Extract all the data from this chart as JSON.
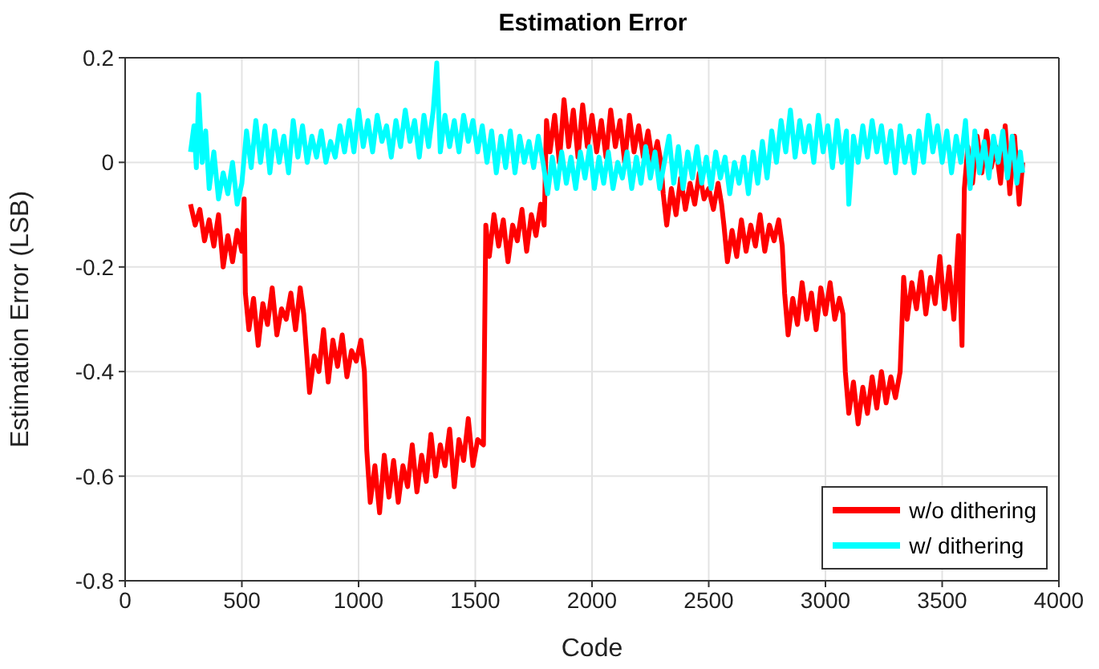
{
  "chart_data": {
    "type": "line",
    "title": "Estimation Error",
    "xlabel": "Code",
    "ylabel": "Estimation Error (LSB)",
    "xlim": [
      0,
      4000
    ],
    "xticks": [
      0,
      500,
      1000,
      1500,
      2000,
      2500,
      3000,
      3500,
      4000
    ],
    "ylim": [
      -0.8,
      0.2
    ],
    "yticks": [
      -0.8,
      -0.6,
      -0.4,
      -0.2,
      0,
      0.2
    ],
    "grid": true,
    "legend": "bottom right",
    "marker": "none",
    "line_style": "solid",
    "series": [
      {
        "name": "w/o dithering",
        "color": "#ff0000",
        "x": [
          280,
          300,
          320,
          340,
          360,
          380,
          400,
          420,
          440,
          460,
          480,
          500,
          510,
          515,
          530,
          550,
          570,
          590,
          610,
          630,
          650,
          670,
          690,
          710,
          730,
          750,
          765,
          775,
          790,
          810,
          830,
          850,
          870,
          890,
          910,
          930,
          950,
          970,
          990,
          1010,
          1025,
          1035,
          1050,
          1070,
          1090,
          1110,
          1130,
          1150,
          1170,
          1190,
          1210,
          1230,
          1250,
          1270,
          1290,
          1310,
          1330,
          1350,
          1370,
          1390,
          1410,
          1430,
          1450,
          1470,
          1490,
          1510,
          1535,
          1545,
          1560,
          1580,
          1600,
          1620,
          1640,
          1660,
          1680,
          1700,
          1720,
          1740,
          1760,
          1780,
          1795,
          1805,
          1820,
          1840,
          1860,
          1880,
          1900,
          1920,
          1940,
          1960,
          1980,
          2000,
          2020,
          2040,
          2060,
          2080,
          2100,
          2120,
          2140,
          2160,
          2180,
          2200,
          2220,
          2240,
          2260,
          2280,
          2295,
          2305,
          2320,
          2340,
          2360,
          2380,
          2400,
          2420,
          2440,
          2460,
          2480,
          2500,
          2520,
          2540,
          2555,
          2565,
          2580,
          2600,
          2620,
          2640,
          2660,
          2680,
          2700,
          2720,
          2740,
          2760,
          2780,
          2800,
          2815,
          2825,
          2840,
          2860,
          2880,
          2900,
          2920,
          2940,
          2960,
          2980,
          3000,
          3020,
          3040,
          3060,
          3075,
          3085,
          3100,
          3120,
          3140,
          3160,
          3180,
          3200,
          3220,
          3240,
          3260,
          3280,
          3300,
          3320,
          3335,
          3350,
          3370,
          3390,
          3410,
          3430,
          3450,
          3470,
          3490,
          3510,
          3530,
          3550,
          3570,
          3585,
          3595,
          3610,
          3630,
          3650,
          3670,
          3690,
          3710,
          3730,
          3750,
          3770,
          3790,
          3810,
          3830,
          3845
        ],
        "values": [
          -0.08,
          -0.12,
          -0.09,
          -0.15,
          -0.11,
          -0.16,
          -0.1,
          -0.2,
          -0.14,
          -0.19,
          -0.13,
          -0.17,
          -0.07,
          -0.25,
          -0.32,
          -0.26,
          -0.35,
          -0.27,
          -0.31,
          -0.24,
          -0.33,
          -0.28,
          -0.3,
          -0.25,
          -0.32,
          -0.24,
          -0.29,
          -0.35,
          -0.44,
          -0.37,
          -0.4,
          -0.32,
          -0.42,
          -0.34,
          -0.39,
          -0.33,
          -0.41,
          -0.36,
          -0.38,
          -0.34,
          -0.4,
          -0.55,
          -0.65,
          -0.58,
          -0.67,
          -0.56,
          -0.64,
          -0.57,
          -0.65,
          -0.58,
          -0.62,
          -0.54,
          -0.63,
          -0.56,
          -0.61,
          -0.52,
          -0.6,
          -0.54,
          -0.58,
          -0.51,
          -0.62,
          -0.53,
          -0.57,
          -0.49,
          -0.58,
          -0.53,
          -0.54,
          -0.12,
          -0.18,
          -0.1,
          -0.16,
          -0.11,
          -0.19,
          -0.12,
          -0.15,
          -0.09,
          -0.17,
          -0.1,
          -0.14,
          -0.08,
          -0.12,
          0.08,
          0.02,
          0.09,
          0.0,
          0.12,
          0.03,
          0.1,
          0.01,
          0.11,
          0.03,
          0.09,
          0.02,
          0.08,
          0.01,
          0.1,
          0.03,
          0.08,
          0.0,
          0.09,
          0.02,
          0.07,
          0.01,
          0.06,
          0.0,
          0.04,
          0.0,
          -0.06,
          -0.12,
          -0.05,
          -0.1,
          -0.03,
          -0.09,
          -0.04,
          -0.08,
          -0.02,
          -0.07,
          -0.05,
          -0.09,
          -0.04,
          -0.08,
          -0.12,
          -0.19,
          -0.13,
          -0.18,
          -0.11,
          -0.17,
          -0.12,
          -0.16,
          -0.1,
          -0.17,
          -0.12,
          -0.15,
          -0.11,
          -0.16,
          -0.25,
          -0.33,
          -0.26,
          -0.31,
          -0.23,
          -0.3,
          -0.25,
          -0.32,
          -0.24,
          -0.29,
          -0.23,
          -0.3,
          -0.26,
          -0.29,
          -0.4,
          -0.48,
          -0.42,
          -0.5,
          -0.43,
          -0.48,
          -0.41,
          -0.47,
          -0.4,
          -0.46,
          -0.41,
          -0.45,
          -0.4,
          -0.22,
          -0.3,
          -0.23,
          -0.28,
          -0.21,
          -0.29,
          -0.22,
          -0.27,
          -0.18,
          -0.28,
          -0.2,
          -0.3,
          -0.14,
          -0.35,
          -0.05,
          0.03,
          -0.04,
          0.05,
          -0.02,
          0.06,
          -0.01,
          0.03,
          -0.04,
          0.07,
          -0.06,
          0.05,
          -0.08,
          0.0
        ]
      },
      {
        "name": "w/ dithering",
        "color": "#00ffff",
        "x": [
          280,
          295,
          305,
          315,
          330,
          345,
          360,
          380,
          400,
          420,
          440,
          460,
          480,
          500,
          520,
          540,
          560,
          580,
          600,
          620,
          640,
          660,
          680,
          700,
          720,
          740,
          760,
          780,
          800,
          820,
          840,
          860,
          880,
          900,
          920,
          940,
          960,
          980,
          1000,
          1020,
          1040,
          1060,
          1080,
          1100,
          1120,
          1140,
          1160,
          1180,
          1200,
          1220,
          1240,
          1260,
          1280,
          1300,
          1320,
          1335,
          1350,
          1370,
          1390,
          1410,
          1430,
          1450,
          1470,
          1490,
          1510,
          1530,
          1550,
          1570,
          1590,
          1610,
          1630,
          1650,
          1670,
          1690,
          1710,
          1730,
          1750,
          1770,
          1790,
          1810,
          1830,
          1850,
          1870,
          1890,
          1910,
          1930,
          1950,
          1970,
          1990,
          2010,
          2030,
          2050,
          2070,
          2090,
          2110,
          2130,
          2150,
          2170,
          2190,
          2210,
          2230,
          2250,
          2270,
          2290,
          2310,
          2330,
          2350,
          2370,
          2390,
          2410,
          2430,
          2450,
          2470,
          2490,
          2510,
          2530,
          2550,
          2570,
          2590,
          2610,
          2630,
          2650,
          2670,
          2690,
          2710,
          2730,
          2750,
          2770,
          2790,
          2810,
          2830,
          2850,
          2870,
          2890,
          2910,
          2930,
          2950,
          2970,
          2990,
          3010,
          3030,
          3050,
          3070,
          3090,
          3100,
          3120,
          3140,
          3160,
          3180,
          3200,
          3220,
          3240,
          3260,
          3280,
          3300,
          3320,
          3340,
          3360,
          3380,
          3400,
          3420,
          3440,
          3460,
          3480,
          3500,
          3520,
          3540,
          3560,
          3580,
          3600,
          3620,
          3640,
          3660,
          3680,
          3700,
          3720,
          3740,
          3760,
          3780,
          3800,
          3820,
          3835,
          3845
        ],
        "values": [
          0.02,
          0.07,
          -0.01,
          0.13,
          0.0,
          0.06,
          -0.05,
          0.02,
          -0.07,
          -0.02,
          -0.06,
          0.0,
          -0.08,
          -0.04,
          0.06,
          -0.01,
          0.08,
          0.0,
          0.07,
          -0.02,
          0.06,
          0.0,
          0.05,
          -0.02,
          0.08,
          0.01,
          0.07,
          0.0,
          0.05,
          0.01,
          0.06,
          0.0,
          0.04,
          0.01,
          0.07,
          0.02,
          0.08,
          0.02,
          0.1,
          0.03,
          0.08,
          0.02,
          0.09,
          0.04,
          0.07,
          0.01,
          0.08,
          0.03,
          0.1,
          0.04,
          0.08,
          0.01,
          0.09,
          0.03,
          0.1,
          0.19,
          0.02,
          0.09,
          0.03,
          0.08,
          0.02,
          0.09,
          0.04,
          0.08,
          0.02,
          0.07,
          0.0,
          0.06,
          -0.02,
          0.05,
          -0.01,
          0.06,
          -0.02,
          0.05,
          0.0,
          0.04,
          -0.01,
          0.05,
          0.0,
          -0.06,
          0.01,
          -0.05,
          0.02,
          -0.04,
          0.01,
          -0.05,
          0.02,
          -0.03,
          0.03,
          -0.05,
          0.01,
          -0.04,
          0.02,
          -0.05,
          0.0,
          -0.03,
          0.02,
          -0.05,
          0.01,
          -0.04,
          0.03,
          -0.03,
          0.02,
          -0.05,
          0.0,
          0.05,
          -0.04,
          0.03,
          -0.05,
          0.02,
          -0.03,
          0.03,
          -0.04,
          0.01,
          -0.05,
          0.02,
          -0.03,
          0.01,
          -0.06,
          0.0,
          -0.04,
          0.01,
          -0.06,
          0.02,
          -0.04,
          0.04,
          -0.03,
          0.06,
          0.0,
          0.08,
          0.02,
          0.1,
          0.01,
          0.08,
          0.02,
          0.07,
          0.0,
          0.09,
          0.02,
          0.07,
          -0.01,
          0.08,
          0.0,
          0.06,
          -0.08,
          0.05,
          0.0,
          0.07,
          0.01,
          0.08,
          0.02,
          0.07,
          0.0,
          0.06,
          -0.02,
          0.07,
          0.0,
          0.05,
          -0.02,
          0.06,
          0.0,
          0.09,
          0.02,
          0.07,
          0.0,
          0.06,
          -0.02,
          0.05,
          0.0,
          0.08,
          -0.05,
          0.06,
          -0.02,
          0.04,
          -0.03,
          0.05,
          0.0,
          0.06,
          -0.03,
          0.05,
          -0.04,
          0.02,
          -0.02
        ]
      }
    ]
  }
}
